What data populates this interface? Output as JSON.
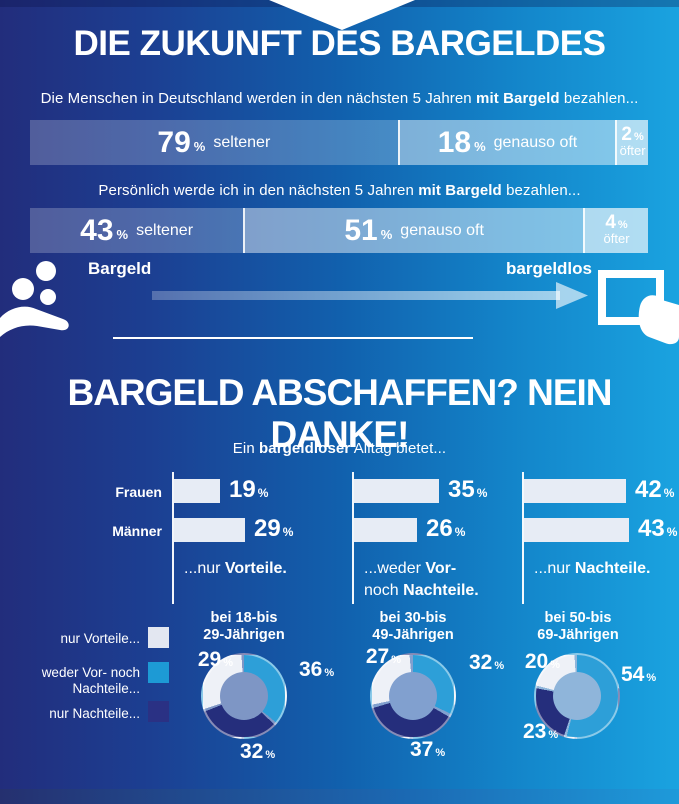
{
  "labels": {
    "percent": "%"
  },
  "header": {
    "title": "DIE ZUKUNFT DES BARGELDES",
    "q1": {
      "pre": "Die Menschen in Deutschland werden in den nächsten 5 Jahren ",
      "bold": "mit Bargeld",
      "post": " bezahlen..."
    },
    "q2": {
      "pre": "Persönlich werde ich in den nächsten 5 Jahren ",
      "bold": "mit Bargeld",
      "post": " bezahlen..."
    }
  },
  "scale": {
    "left": "Bargeld",
    "right": "bargeldlos"
  },
  "section2": {
    "title": "BARGELD ABSCHAFFEN? NEIN DANKE!",
    "subtitle": {
      "pre": "Ein ",
      "bold": "bargeldloser",
      "post": " Alltag bietet..."
    }
  },
  "captions": [
    [
      [
        {
          "text": "...nur "
        },
        {
          "text": "Vorteile.",
          "bold": true
        }
      ]
    ],
    [
      [
        {
          "text": "...weder "
        },
        {
          "text": "Vor-",
          "bold": true
        }
      ],
      [
        {
          "text": "noch "
        },
        {
          "text": "Nachteile.",
          "bold": true
        }
      ]
    ],
    [
      [
        {
          "text": "...nur "
        },
        {
          "text": "Nachteile.",
          "bold": true
        }
      ]
    ]
  ],
  "legend": {
    "items": [
      {
        "lines": [
          "nur Vorteile..."
        ],
        "color": "#e3e7f1"
      },
      {
        "lines": [
          "weder Vor- noch",
          "Nachteile..."
        ],
        "color": "#1d9ad5"
      },
      {
        "lines": [
          "nur Nachteile..."
        ],
        "color": "#2a3184"
      }
    ]
  },
  "donut_titles": [
    [
      "bei 18-bis",
      "29-Jährigen"
    ],
    [
      "bei 30-bis",
      "49-Jährigen"
    ],
    [
      "bei 50-bis",
      "69-Jährigen"
    ]
  ],
  "colors": {
    "bg_gradient_left": "#222d7c",
    "bg_gradient_right": "#1aa3e0",
    "text": "#ffffff",
    "bar_fill_light": "#e7ecf5",
    "donut": {
      "vorteile": "#eef1f7",
      "weder": "#2d9fd8",
      "nachteile": "#252e7c"
    },
    "donut_inner": [
      "#7e96c5",
      "#81a0cf",
      "#8fb5da"
    ]
  },
  "chart_data": [
    {
      "type": "bar",
      "subtype": "stacked-horizontal",
      "title": "Die Menschen in Deutschland werden in den nächsten 5 Jahren mit Bargeld bezahlen...",
      "categories": [
        "seltener",
        "genauso oft",
        "öfter"
      ],
      "values": [
        79,
        18,
        2
      ],
      "unit": "%",
      "display_width_pct": [
        59.5,
        35.2,
        5.3
      ]
    },
    {
      "type": "bar",
      "subtype": "stacked-horizontal",
      "title": "Persönlich werde ich in den nächsten 5 Jahren mit Bargeld bezahlen...",
      "categories": [
        "seltener",
        "genauso oft",
        "öfter"
      ],
      "values": [
        43,
        51,
        4
      ],
      "unit": "%",
      "display_width_pct": [
        34.5,
        55.0,
        10.5
      ]
    },
    {
      "type": "bar",
      "subtype": "grouped-horizontal",
      "title": "Ein bargeldloser Alltag bietet...",
      "categories": [
        "nur Vorteile",
        "weder Vor- noch Nachteile",
        "nur Nachteile"
      ],
      "series": [
        {
          "name": "Frauen",
          "values": [
            19,
            35,
            42
          ]
        },
        {
          "name": "Männer",
          "values": [
            29,
            26,
            43
          ]
        }
      ],
      "unit": "%"
    },
    {
      "type": "pie",
      "subtype": "donut",
      "title": "bei 18-bis 29-Jährigen",
      "categories": [
        "nur Vorteile",
        "weder Vor- noch Nachteile",
        "nur Nachteile"
      ],
      "values": [
        29,
        36,
        32
      ],
      "unit": "%"
    },
    {
      "type": "pie",
      "subtype": "donut",
      "title": "bei 30-bis 49-Jährigen",
      "categories": [
        "nur Vorteile",
        "weder Vor- noch Nachteile",
        "nur Nachteile"
      ],
      "values": [
        27,
        32,
        37
      ],
      "unit": "%"
    },
    {
      "type": "pie",
      "subtype": "donut",
      "title": "bei 50-bis 69-Jährigen",
      "categories": [
        "nur Vorteile",
        "weder Vor- noch Nachteile",
        "nur Nachteile"
      ],
      "values": [
        20,
        54,
        23
      ],
      "unit": "%"
    }
  ]
}
